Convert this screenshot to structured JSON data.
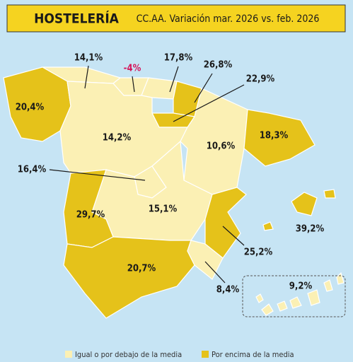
{
  "header": {
    "title": "HOSTELERÍA",
    "subtitle": "CC.AA. Variación mar. 2026 vs. feb. 2026"
  },
  "regions": [
    {
      "label": "14,1%",
      "color": "#fbf0b4"
    },
    {
      "label": "-4%",
      "color": "#fbf0b4",
      "label_color": "#d4145a"
    },
    {
      "label": "17,8%",
      "color": "#fbf0b4"
    },
    {
      "label": "26,8%",
      "color": "#e5c21a"
    },
    {
      "label": "22,9%",
      "color": "#e5c21a"
    },
    {
      "label": "20,4%",
      "color": "#e5c21a"
    },
    {
      "label": "14,2%",
      "color": "#fbf0b4"
    },
    {
      "label": "10,6%",
      "color": "#fbf0b4"
    },
    {
      "label": "18,3%",
      "color": "#e5c21a"
    },
    {
      "label": "16,4%",
      "color": "#fbf0b4"
    },
    {
      "label": "15,1%",
      "color": "#fbf0b4"
    },
    {
      "label": "29,7%",
      "color": "#e5c21a"
    },
    {
      "label": "25,2%",
      "color": "#e5c21a"
    },
    {
      "label": "39,2%",
      "color": "#e5c21a"
    },
    {
      "label": "20,7%",
      "color": "#e5c21a"
    },
    {
      "label": "8,4%",
      "color": "#fbf0b4"
    },
    {
      "label": "9,2%",
      "color": "#fbf0b4"
    }
  ],
  "legend": {
    "items": [
      {
        "label": "Igual o por debajo de la media",
        "color": "#fbf0b4"
      },
      {
        "label": "Por encima de la media",
        "color": "#e5c21a"
      }
    ]
  }
}
